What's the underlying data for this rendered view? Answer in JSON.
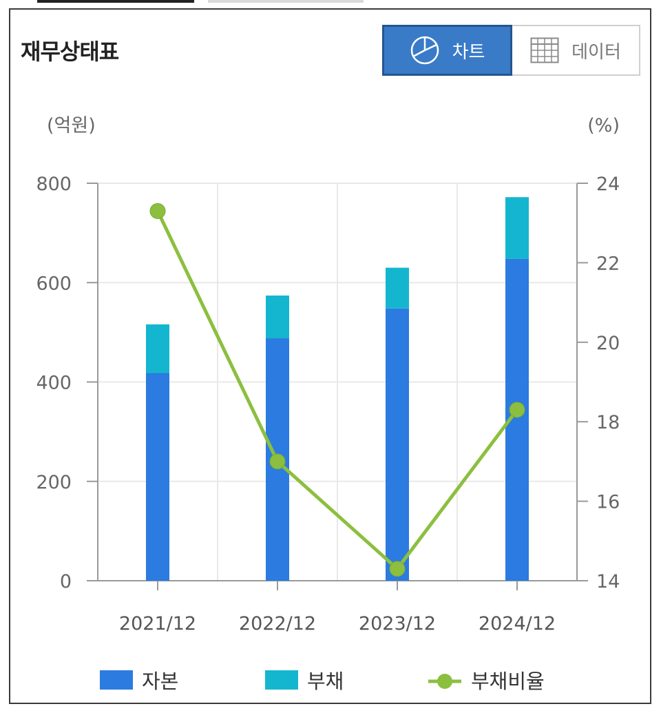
{
  "header": {
    "title": "재무상태표",
    "tabs": [
      {
        "label": "차트",
        "icon": "pie-chart-icon",
        "active": true
      },
      {
        "label": "데이터",
        "icon": "table-grid-icon",
        "active": false
      }
    ]
  },
  "chart_data": {
    "type": "bar",
    "stacked": true,
    "categories": [
      "2021/12",
      "2022/12",
      "2023/12",
      "2024/12"
    ],
    "series": [
      {
        "name": "자본",
        "type": "bar",
        "axis": "left",
        "color": "#2b7be0",
        "values": [
          418,
          488,
          548,
          648
        ]
      },
      {
        "name": "부채",
        "type": "bar",
        "axis": "left",
        "color": "#14b6cf",
        "values": [
          98,
          86,
          82,
          124
        ]
      },
      {
        "name": "부채비율",
        "type": "line",
        "axis": "right",
        "color": "#8cbf3f",
        "values": [
          23.3,
          17.0,
          14.3,
          18.3
        ]
      }
    ],
    "y_left": {
      "unit": "(억원)",
      "ylim": [
        0,
        800
      ],
      "ticks": [
        0,
        200,
        400,
        600,
        800
      ]
    },
    "y_right": {
      "unit": "(%)",
      "ylim": [
        14,
        24
      ],
      "ticks": [
        14,
        16,
        18,
        20,
        22,
        24
      ]
    },
    "grid": true,
    "legend_position": "bottom"
  }
}
